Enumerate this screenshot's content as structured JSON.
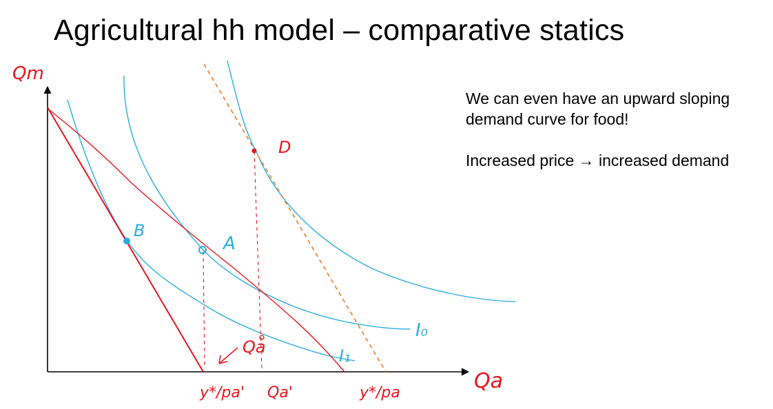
{
  "slide": {
    "title": "Agricultural hh model – comparative statics",
    "notes": {
      "line1": "We can even have an upward sloping",
      "line2": "demand curve for food!",
      "line3": "Increased price → increased demand"
    }
  },
  "diagram": {
    "y_axis_label": "Qm",
    "x_axis_label": "Qa",
    "points": {
      "b": "B",
      "a": "A",
      "d": "D"
    },
    "curves": {
      "i0": "I₀",
      "i1": "I₁"
    },
    "annotations": {
      "qa": "Qa"
    },
    "x_ticks": {
      "budget_new": "y*/pa'",
      "qa_prime": "Qa'",
      "budget_old": "y*/pa"
    },
    "colors": {
      "indifference": "#2aaee0",
      "budget": "#e8141b",
      "compensated": "#f0853a",
      "axis": "#000000"
    }
  }
}
